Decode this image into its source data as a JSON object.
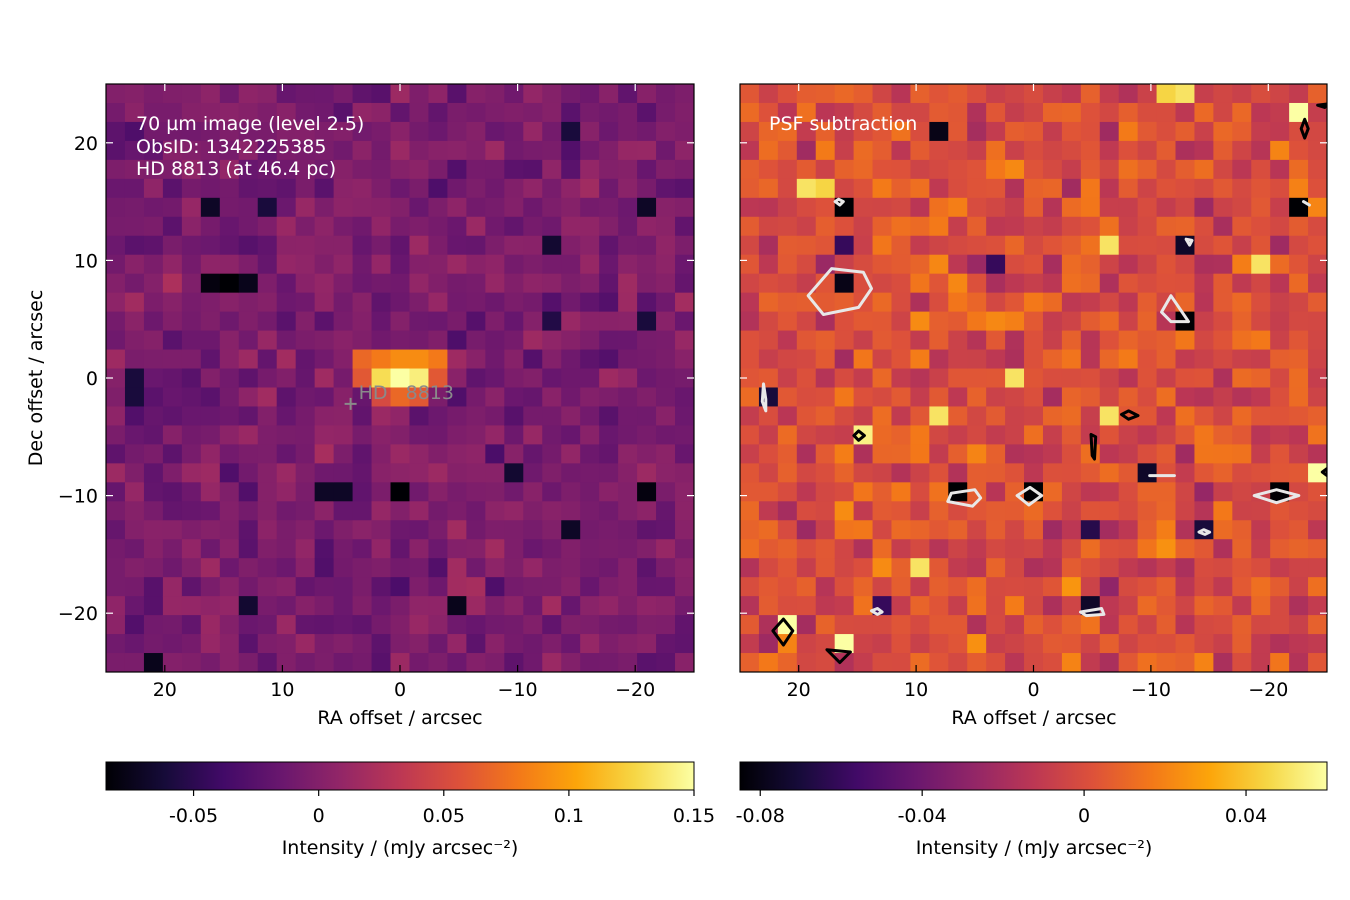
{
  "chart_data": [
    {
      "type": "heatmap",
      "annotation_lines": [
        "70 µm image (level 2.5)",
        "ObsID: 1342225385",
        "HD 8813 (at 46.4 pc)"
      ],
      "star_label": "HD   8813",
      "star_position": [
        4.2,
        -2.2
      ],
      "xlabel": "RA offset / arcsec",
      "ylabel": "Dec offset / arcsec",
      "xlim": [
        25,
        -25
      ],
      "ylim": [
        -25,
        25
      ],
      "xticks": [
        20,
        10,
        0,
        -10,
        -20
      ],
      "yticks": [
        20,
        10,
        0,
        -10,
        -20
      ],
      "xtick_labels": [
        "20",
        "10",
        "0",
        "−10",
        "−20"
      ],
      "ytick_labels": [
        "20",
        "10",
        "0",
        "−10",
        "−20"
      ],
      "grid": false,
      "colormap": "inferno",
      "color_range": [
        -0.085,
        0.15
      ],
      "colorbar": {
        "label": "Intensity / (mJy arcsec⁻²)",
        "ticks": [
          -0.05,
          0,
          0.05,
          0.1,
          0.15
        ],
        "tick_labels": [
          "-0.05",
          "0",
          "0.05",
          "0.1",
          "0.15"
        ]
      },
      "bright_source": [
        {
          "x": 0,
          "y": 0,
          "value": 0.15
        },
        {
          "x": -1.6,
          "y": 0,
          "value": 0.14
        },
        {
          "x": 1.6,
          "y": 0,
          "value": 0.13
        },
        {
          "x": 0,
          "y": 1.6,
          "value": 0.09
        },
        {
          "x": -3.2,
          "y": 1.6,
          "value": 0.08
        },
        {
          "x": -1.6,
          "y": 1.6,
          "value": 0.09
        },
        {
          "x": 1.6,
          "y": 1.6,
          "value": 0.08
        },
        {
          "x": 3.2,
          "y": 1.6,
          "value": 0.07
        },
        {
          "x": 0,
          "y": -1.6,
          "value": 0.07
        },
        {
          "x": -1.6,
          "y": -1.6,
          "value": 0.06
        },
        {
          "x": 1.6,
          "y": -1.6,
          "value": 0.05
        },
        {
          "x": -3.2,
          "y": 0,
          "value": 0.06
        },
        {
          "x": 3.2,
          "y": 0,
          "value": 0.06
        }
      ],
      "dark_pixels": [
        {
          "x": 14.9,
          "y": 8.1,
          "value": -0.085
        },
        {
          "x": 16.5,
          "y": 8.1,
          "value": -0.08
        },
        {
          "x": 13.3,
          "y": 8.1,
          "value": -0.075
        },
        {
          "x": 16.5,
          "y": 14.3,
          "value": -0.07
        },
        {
          "x": 11.7,
          "y": 14.3,
          "value": -0.06
        },
        {
          "x": -12.8,
          "y": 11.2,
          "value": -0.065
        },
        {
          "x": -12.8,
          "y": 5.2,
          "value": -0.055
        },
        {
          "x": 0.1,
          "y": -9.6,
          "value": -0.085
        },
        {
          "x": 5.0,
          "y": -9.6,
          "value": -0.07
        },
        {
          "x": 6.6,
          "y": -9.6,
          "value": -0.07
        },
        {
          "x": -20.9,
          "y": -9.6,
          "value": -0.08
        },
        {
          "x": -9.6,
          "y": -7.6,
          "value": -0.065
        },
        {
          "x": -14.4,
          "y": -12.6,
          "value": -0.07
        },
        {
          "x": -4.6,
          "y": -19.3,
          "value": -0.075
        },
        {
          "x": 13.3,
          "y": -19.3,
          "value": -0.065
        },
        {
          "x": 21.4,
          "y": -24.0,
          "value": -0.075
        },
        {
          "x": 22.9,
          "y": -1.5,
          "value": -0.06
        },
        {
          "x": 22.9,
          "y": 0.0,
          "value": -0.06
        },
        {
          "x": -14.4,
          "y": 21.2,
          "value": -0.06
        },
        {
          "x": -20.9,
          "y": 14.3,
          "value": -0.07
        },
        {
          "x": -20.9,
          "y": 4.7,
          "value": -0.06
        }
      ]
    },
    {
      "type": "heatmap",
      "annotation_lines": [
        "PSF subtraction"
      ],
      "xlabel": "RA offset / arcsec",
      "ylabel": "",
      "xlim": [
        25,
        -25
      ],
      "ylim": [
        -25,
        25
      ],
      "xticks": [
        20,
        10,
        0,
        -10,
        -20
      ],
      "yticks": [
        20,
        10,
        0,
        -10,
        -20
      ],
      "xtick_labels": [
        "20",
        "10",
        "0",
        "−10",
        "−20"
      ],
      "grid": false,
      "colormap": "inferno",
      "color_range": [
        -0.085,
        0.06
      ],
      "colorbar": {
        "label": "Intensity / (mJy arcsec⁻²)",
        "ticks": [
          -0.08,
          -0.04,
          0,
          0.04
        ],
        "tick_labels": [
          "-0.08",
          "-0.04",
          "0",
          "0.04"
        ]
      },
      "dark_pixels": [
        {
          "x": 16.5,
          "y": 14.3,
          "value": -0.085
        },
        {
          "x": 16.5,
          "y": 8.1,
          "value": -0.08
        },
        {
          "x": 16.5,
          "y": 11.2,
          "value": -0.06
        },
        {
          "x": 22.9,
          "y": -1.5,
          "value": -0.07
        },
        {
          "x": 6.6,
          "y": -9.6,
          "value": -0.085
        },
        {
          "x": 0.1,
          "y": -9.6,
          "value": -0.085
        },
        {
          "x": -12.8,
          "y": 5.2,
          "value": -0.085
        },
        {
          "x": -12.8,
          "y": 11.2,
          "value": -0.075
        },
        {
          "x": -20.9,
          "y": -9.6,
          "value": -0.085
        },
        {
          "x": -9.6,
          "y": -7.6,
          "value": -0.075
        },
        {
          "x": -14.4,
          "y": -12.6,
          "value": -0.07
        },
        {
          "x": -4.6,
          "y": -19.3,
          "value": -0.075
        },
        {
          "x": 13.3,
          "y": -19.3,
          "value": -0.06
        },
        {
          "x": -22.4,
          "y": 14.3,
          "value": -0.085
        },
        {
          "x": 8.1,
          "y": 20.5,
          "value": -0.08
        },
        {
          "x": -4.6,
          "y": -12.6,
          "value": -0.065
        },
        {
          "x": 3.4,
          "y": 9.9,
          "value": -0.06
        }
      ],
      "bright_pixels": [
        {
          "x": -22.4,
          "y": 22.9,
          "value": 0.06
        },
        {
          "x": -24.0,
          "y": -8.1,
          "value": 0.06
        },
        {
          "x": 21.4,
          "y": -21.3,
          "value": 0.06
        },
        {
          "x": 16.5,
          "y": -22.8,
          "value": 0.06
        },
        {
          "x": 14.9,
          "y": -4.7,
          "value": 0.055
        },
        {
          "x": 7.9,
          "y": -3.2,
          "value": 0.05
        },
        {
          "x": -6.1,
          "y": -3.2,
          "value": 0.05
        },
        {
          "x": -6.1,
          "y": 11.2,
          "value": 0.05
        },
        {
          "x": -19.3,
          "y": 9.9,
          "value": 0.05
        },
        {
          "x": 1.6,
          "y": 0.0,
          "value": 0.05
        },
        {
          "x": 19.8,
          "y": 16.0,
          "value": 0.05
        },
        {
          "x": 18.2,
          "y": 16.0,
          "value": 0.045
        },
        {
          "x": 10.2,
          "y": -16.2,
          "value": 0.05
        },
        {
          "x": -10.8,
          "y": 24.4,
          "value": 0.045
        },
        {
          "x": -13.0,
          "y": 24.4,
          "value": 0.05
        }
      ],
      "contours": [
        {
          "color": "white",
          "points": [
            [
              19.2,
              7.0
            ],
            [
              17.2,
              9.3
            ],
            [
              14.5,
              9.0
            ],
            [
              13.8,
              7.6
            ],
            [
              14.9,
              6.0
            ],
            [
              17.9,
              5.4
            ]
          ]
        },
        {
          "color": "white",
          "points": [
            [
              -11.7,
              7.0
            ],
            [
              -13.0,
              5.1
            ],
            [
              -13.2,
              4.8
            ],
            [
              -11.7,
              4.8
            ],
            [
              -10.9,
              5.6
            ]
          ]
        },
        {
          "color": "white",
          "points": [
            [
              23.0,
              -0.5
            ],
            [
              22.8,
              -1.8
            ],
            [
              22.8,
              -2.8
            ],
            [
              23.1,
              -2.0
            ]
          ]
        },
        {
          "color": "white",
          "points": [
            [
              5.0,
              -9.5
            ],
            [
              7.0,
              -9.8
            ],
            [
              7.3,
              -10.5
            ],
            [
              5.2,
              -10.9
            ],
            [
              4.5,
              -10.2
            ]
          ]
        },
        {
          "color": "white",
          "points": [
            [
              1.4,
              -10.0
            ],
            [
              0.3,
              -9.3
            ],
            [
              -0.7,
              -10.0
            ],
            [
              0.4,
              -10.8
            ]
          ]
        },
        {
          "color": "white",
          "points": [
            [
              -18.8,
              -10.0
            ],
            [
              -20.7,
              -9.5
            ],
            [
              -22.6,
              -10.0
            ],
            [
              -20.7,
              -10.6
            ]
          ]
        },
        {
          "color": "white",
          "points": [
            [
              -9.9,
              -8.3
            ],
            [
              -12.0,
              -8.3
            ]
          ]
        },
        {
          "color": "white",
          "points": [
            [
              -4.0,
              -19.9
            ],
            [
              -5.8,
              -19.6
            ],
            [
              -6.0,
              -20.1
            ],
            [
              -4.5,
              -20.2
            ]
          ]
        },
        {
          "color": "white",
          "points": [
            [
              13.8,
              -19.8
            ],
            [
              13.3,
              -19.6
            ],
            [
              12.9,
              -19.9
            ],
            [
              13.3,
              -20.1
            ]
          ]
        },
        {
          "color": "white",
          "points": [
            [
              16.9,
              15.0
            ],
            [
              16.5,
              14.7
            ],
            [
              16.2,
              15.0
            ],
            [
              16.6,
              15.2
            ]
          ]
        },
        {
          "color": "white",
          "points": [
            [
              -13.0,
              11.8
            ],
            [
              -13.3,
              11.3
            ],
            [
              -13.5,
              11.7
            ]
          ]
        },
        {
          "color": "white",
          "points": [
            [
              -15.0,
              -13.1
            ],
            [
              -14.5,
              -12.9
            ],
            [
              -14.1,
              -13.1
            ],
            [
              -14.6,
              -13.3
            ]
          ]
        },
        {
          "color": "white",
          "points": [
            [
              -23.0,
              15.0
            ],
            [
              -23.5,
              14.7
            ]
          ]
        },
        {
          "color": "black",
          "points": [
            [
              -23.1,
              22.0
            ],
            [
              -22.8,
              21.2
            ],
            [
              -23.1,
              20.4
            ],
            [
              -23.4,
              21.2
            ]
          ]
        },
        {
          "color": "black",
          "points": [
            [
              -24.2,
              23.2
            ],
            [
              -24.8,
              23.0
            ],
            [
              -25.0,
              23.3
            ]
          ]
        },
        {
          "color": "black",
          "points": [
            [
              -7.5,
              -3.1
            ],
            [
              -8.1,
              -2.8
            ],
            [
              -8.9,
              -3.2
            ],
            [
              -8.1,
              -3.5
            ]
          ]
        },
        {
          "color": "black",
          "points": [
            [
              -4.9,
              -4.8
            ],
            [
              -5.0,
              -6.6
            ],
            [
              -5.2,
              -6.9
            ],
            [
              -5.3,
              -5.0
            ]
          ]
        },
        {
          "color": "black",
          "points": [
            [
              14.9,
              -4.5
            ],
            [
              15.3,
              -4.9
            ],
            [
              14.9,
              -5.3
            ],
            [
              14.4,
              -4.9
            ]
          ]
        },
        {
          "color": "black",
          "points": [
            [
              21.3,
              -20.5
            ],
            [
              22.2,
              -21.5
            ],
            [
              21.3,
              -22.7
            ],
            [
              20.5,
              -21.5
            ]
          ]
        },
        {
          "color": "black",
          "points": [
            [
              17.6,
              -23.1
            ],
            [
              16.5,
              -24.2
            ],
            [
              15.6,
              -23.3
            ]
          ]
        },
        {
          "color": "black",
          "points": [
            [
              -24.6,
              -8.0
            ],
            [
              -25.0,
              -8.3
            ],
            [
              -25.0,
              -7.7
            ]
          ]
        }
      ]
    }
  ]
}
